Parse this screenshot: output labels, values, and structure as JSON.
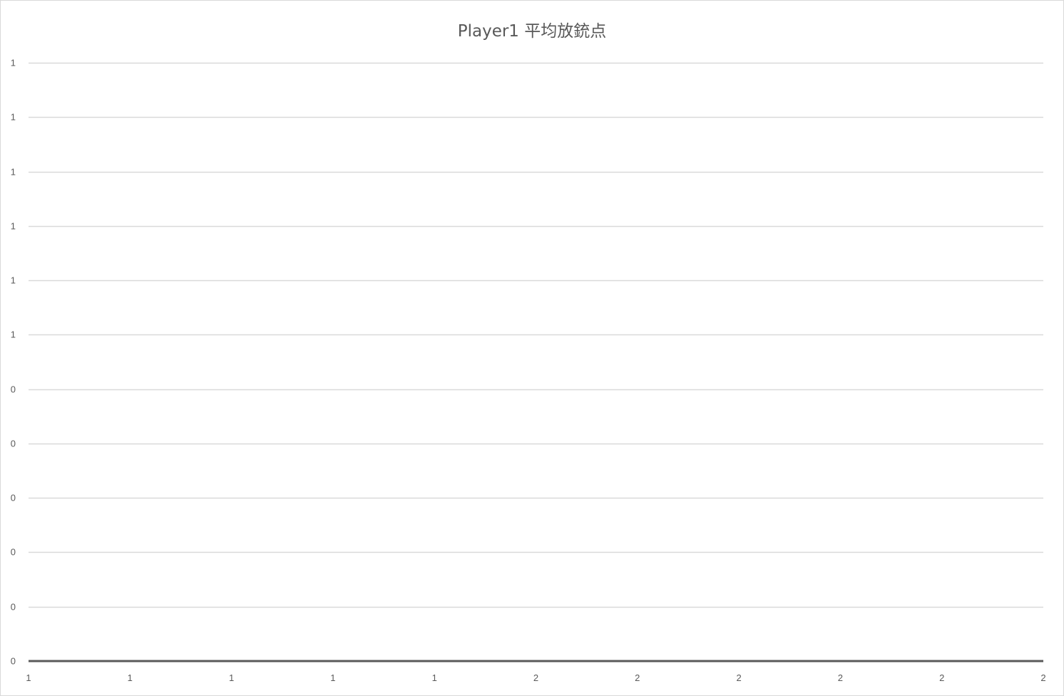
{
  "chart_data": {
    "type": "line",
    "title": "Player1 平均放銃点",
    "xlabel": "",
    "ylabel": "",
    "x_tick_labels": [
      "1",
      "1",
      "1",
      "1",
      "1",
      "2",
      "2",
      "2",
      "2",
      "2",
      "2"
    ],
    "y_tick_labels": [
      "0",
      "0",
      "0",
      "0",
      "0",
      "0",
      "1",
      "1",
      "1",
      "1",
      "1",
      "1"
    ],
    "ylim": [
      0,
      1.1
    ],
    "y_tick_values": [
      0,
      0.1,
      0.2,
      0.3,
      0.4,
      0.5,
      0.6,
      0.7,
      0.8,
      0.9,
      1.0,
      1.1
    ],
    "x_tick_values": [
      1.0,
      1.1,
      1.2,
      1.3,
      1.4,
      1.5,
      1.6,
      1.7,
      1.8,
      1.9,
      2.0
    ],
    "xlim": [
      1.0,
      2.0
    ],
    "series": [],
    "grid": true,
    "legend": "none",
    "colors": {
      "gridline": "#d9d9d9",
      "axis_line": "#595959",
      "text": "#595959",
      "border": "#d9d9d9"
    }
  }
}
